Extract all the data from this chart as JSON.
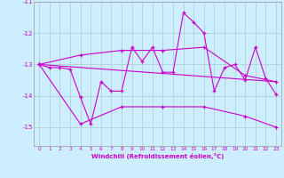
{
  "title": "",
  "xlabel": "Windchill (Refroidissement éolien,°C)",
  "background_color": "#cceeff",
  "grid_color": "#aacccc",
  "line_color": "#cc00cc",
  "xlim": [
    -0.5,
    23.5
  ],
  "ylim": [
    -15.6,
    -11.2
  ],
  "yticks": [
    -15,
    -14,
    -13,
    -12,
    -11
  ],
  "xticks": [
    0,
    1,
    2,
    3,
    4,
    5,
    6,
    7,
    8,
    9,
    10,
    11,
    12,
    13,
    14,
    15,
    16,
    17,
    18,
    19,
    20,
    21,
    22,
    23
  ],
  "series": [
    {
      "points": [
        [
          0,
          -13.0
        ],
        [
          1,
          -13.1
        ],
        [
          2,
          -13.1
        ],
        [
          3,
          -13.15
        ],
        [
          4,
          -14.05
        ],
        [
          5,
          -14.9
        ],
        [
          6,
          -13.55
        ],
        [
          7,
          -13.85
        ],
        [
          8,
          -13.85
        ],
        [
          9,
          -12.45
        ],
        [
          10,
          -12.9
        ],
        [
          11,
          -12.45
        ],
        [
          12,
          -13.25
        ],
        [
          13,
          -13.25
        ],
        [
          14,
          -11.35
        ],
        [
          15,
          -11.65
        ],
        [
          16,
          -12.0
        ],
        [
          17,
          -13.85
        ],
        [
          18,
          -13.1
        ],
        [
          19,
          -13.0
        ],
        [
          20,
          -13.5
        ],
        [
          21,
          -12.45
        ],
        [
          22,
          -13.45
        ],
        [
          23,
          -13.95
        ]
      ],
      "marker": true
    },
    {
      "points": [
        [
          0,
          -13.0
        ],
        [
          23,
          -13.55
        ]
      ],
      "marker": false
    },
    {
      "points": [
        [
          0,
          -13.0
        ],
        [
          4,
          -12.7
        ],
        [
          8,
          -12.55
        ],
        [
          12,
          -12.55
        ],
        [
          16,
          -12.45
        ],
        [
          20,
          -13.35
        ],
        [
          23,
          -13.55
        ]
      ],
      "marker": true
    },
    {
      "points": [
        [
          0,
          -13.0
        ],
        [
          4,
          -14.9
        ],
        [
          8,
          -14.35
        ],
        [
          12,
          -14.35
        ],
        [
          16,
          -14.35
        ],
        [
          20,
          -14.65
        ],
        [
          23,
          -15.0
        ]
      ],
      "marker": true
    }
  ]
}
